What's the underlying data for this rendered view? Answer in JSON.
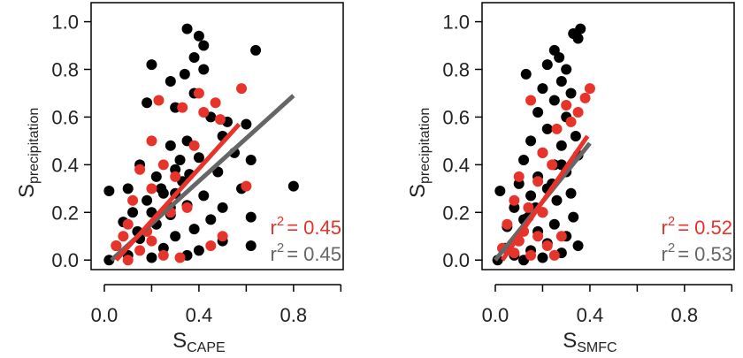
{
  "chart_data": [
    {
      "type": "scatter",
      "x_label": {
        "text": "S",
        "sub": "CAPE"
      },
      "y_label": {
        "text": "S",
        "sub": "precipitation"
      },
      "xlim": [
        -0.056,
        1.01
      ],
      "ylim": [
        -0.04,
        1.08
      ],
      "xticks": [
        {
          "value": 0,
          "label": "0.0"
        },
        0.4,
        0.8
      ],
      "xminorticks": [
        0.2,
        0.6,
        1
      ],
      "yticks": [
        {
          "value": 0,
          "label": "0.0"
        },
        0.2,
        0.4,
        0.6,
        0.8,
        {
          "value": 1,
          "label": "1.0"
        }
      ],
      "series": [
        {
          "color": "#000000",
          "x": [
            0.35,
            0.4,
            0.42,
            0.64,
            0.38,
            0.2,
            0.42,
            0.34,
            0.28,
            0.38,
            0.18,
            0.3,
            0.45,
            0.52,
            0.6,
            0.5,
            0.35,
            0.28,
            0.55,
            0.4,
            0.62,
            0.15,
            0.3,
            0.48,
            0.22,
            0.33,
            0.58,
            0.8,
            0.1,
            0.02,
            0.25,
            0.42,
            0.18,
            0.35,
            0.5,
            0.12,
            0.28,
            0.45,
            0.62,
            0.08,
            0.22,
            0.38,
            0.3,
            0.15,
            0.5,
            0.05,
            0.25,
            0.4,
            0.62,
            0.1,
            0.2,
            0.35,
            0.02,
            0.28,
            0.32,
            0.24,
            0.36,
            0.2,
            0.3,
            0.14
          ],
          "values": [
            0.97,
            0.94,
            0.9,
            0.88,
            0.85,
            0.82,
            0.8,
            0.78,
            0.75,
            0.7,
            0.66,
            0.64,
            0.6,
            0.58,
            0.57,
            0.52,
            0.5,
            0.48,
            0.45,
            0.43,
            0.42,
            0.4,
            0.38,
            0.37,
            0.35,
            0.33,
            0.3,
            0.31,
            0.3,
            0.29,
            0.28,
            0.27,
            0.25,
            0.23,
            0.22,
            0.2,
            0.19,
            0.17,
            0.18,
            0.16,
            0.15,
            0.13,
            0.1,
            0.09,
            0.08,
            0.06,
            0.05,
            0.04,
            0.06,
            0.02,
            0.01,
            0.02,
            0.0,
            0.22,
            0.42,
            0.3,
            0.36,
            0.2,
            0.28,
            0.12
          ]
        },
        {
          "color": "#e8332a",
          "x": [
            0.58,
            0.4,
            0.23,
            0.47,
            0.33,
            0.42,
            0.49,
            0.2,
            0.38,
            0.25,
            0.15,
            0.3,
            0.6,
            0.2,
            0.12,
            0.28,
            0.35,
            0.1,
            0.18,
            0.5,
            0.45,
            0.05,
            0.15,
            0.25,
            0.32,
            0.1,
            0.2,
            0.08
          ],
          "values": [
            0.72,
            0.7,
            0.67,
            0.66,
            0.64,
            0.62,
            0.59,
            0.5,
            0.48,
            0.4,
            0.38,
            0.35,
            0.31,
            0.3,
            0.25,
            0.2,
            0.22,
            0.15,
            0.12,
            0.1,
            0.06,
            0.06,
            0.04,
            0.02,
            0.01,
            0.0,
            0.08,
            0.1
          ]
        }
      ],
      "lines": [
        {
          "color": "#666666",
          "x": [
            0.03,
            0.8
          ],
          "values": [
            0.0,
            0.69
          ]
        },
        {
          "color": "#e8332a",
          "x": [
            0.05,
            0.57
          ],
          "values": [
            0.0,
            0.57
          ]
        }
      ],
      "annotations": [
        {
          "text": "r",
          "sup": "2",
          "rest": "= 0.45",
          "color": "#e8332a"
        },
        {
          "text": "r",
          "sup": "2",
          "rest": "= 0.45",
          "color": "#666666"
        }
      ]
    },
    {
      "type": "scatter",
      "x_label": {
        "text": "S",
        "sub": "SMFC"
      },
      "y_label": {
        "text": "S",
        "sub": "precipitation"
      },
      "xlim": [
        -0.056,
        1.01
      ],
      "ylim": [
        -0.04,
        1.08
      ],
      "xticks": [
        {
          "value": 0,
          "label": "0.0"
        },
        0.4,
        0.8
      ],
      "xminorticks": [
        0.2,
        0.6,
        1
      ],
      "yticks": [
        {
          "value": 0,
          "label": "0.0"
        },
        0.2,
        0.4,
        0.6,
        0.8,
        {
          "value": 1,
          "label": "1.0"
        }
      ],
      "series": [
        {
          "color": "#000000",
          "x": [
            0.36,
            0.35,
            0.33,
            0.25,
            0.27,
            0.22,
            0.3,
            0.13,
            0.28,
            0.2,
            0.32,
            0.25,
            0.18,
            0.3,
            0.22,
            0.34,
            0.15,
            0.28,
            0.2,
            0.35,
            0.12,
            0.25,
            0.3,
            0.18,
            0.1,
            0.22,
            0.32,
            0.02,
            0.15,
            0.26,
            0.08,
            0.2,
            0.33,
            0.12,
            0.25,
            0.05,
            0.18,
            0.3,
            0.1,
            0.22,
            0.35,
            0.04,
            0.15,
            0.28,
            0.08,
            0.2,
            0.01,
            0.12,
            0.24,
            0.17,
            0.28,
            0.14
          ],
          "values": [
            0.97,
            0.93,
            0.95,
            0.88,
            0.85,
            0.82,
            0.8,
            0.78,
            0.75,
            0.72,
            0.7,
            0.67,
            0.62,
            0.6,
            0.55,
            0.52,
            0.5,
            0.48,
            0.45,
            0.44,
            0.42,
            0.4,
            0.37,
            0.35,
            0.32,
            0.3,
            0.28,
            0.29,
            0.27,
            0.25,
            0.22,
            0.2,
            0.18,
            0.17,
            0.15,
            0.14,
            0.12,
            0.1,
            0.08,
            0.07,
            0.06,
            0.05,
            0.04,
            0.03,
            0.02,
            0.01,
            0.0,
            0.0,
            0.32,
            0.22,
            0.4,
            0.18
          ]
        },
        {
          "color": "#e8332a",
          "x": [
            0.4,
            0.38,
            0.15,
            0.3,
            0.35,
            0.32,
            0.26,
            0.2,
            0.24,
            0.1,
            0.18,
            0.08,
            0.14,
            0.2,
            0.05,
            0.12,
            0.28,
            0.22,
            0.25,
            0.03,
            0.08,
            0.15,
            0.1,
            0.18
          ],
          "values": [
            0.72,
            0.68,
            0.67,
            0.65,
            0.62,
            0.58,
            0.55,
            0.45,
            0.4,
            0.35,
            0.33,
            0.25,
            0.22,
            0.2,
            0.15,
            0.12,
            0.1,
            0.06,
            0.02,
            0.05,
            0.03,
            0.02,
            0.08,
            0.1
          ]
        }
      ],
      "lines": [
        {
          "color": "#666666",
          "x": [
            0.0,
            0.4
          ],
          "values": [
            0.0,
            0.49
          ]
        },
        {
          "color": "#e8332a",
          "x": [
            0.03,
            0.39
          ],
          "values": [
            0.0,
            0.52
          ]
        }
      ],
      "annotations": [
        {
          "text": "r",
          "sup": "2",
          "rest": "= 0.52",
          "color": "#e8332a"
        },
        {
          "text": "r",
          "sup": "2",
          "rest": "= 0.53",
          "color": "#666666"
        }
      ]
    }
  ]
}
